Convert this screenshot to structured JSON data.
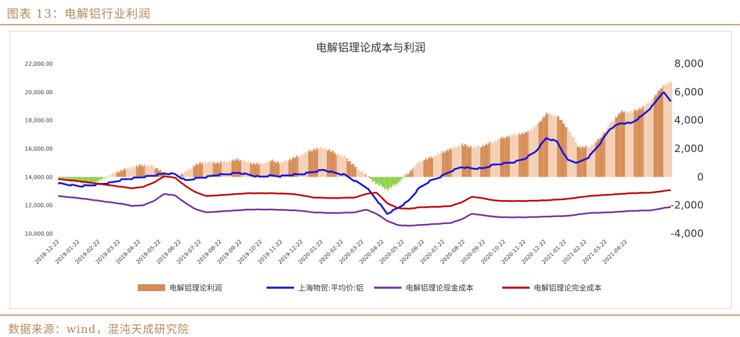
{
  "figure_title": "图表 13：电解铝行业利润",
  "source": "数据来源：wind，混沌天成研究院",
  "colors": {
    "profit_pos_dark": "#d68b54",
    "profit_pos_light": "#f3cfb3",
    "profit_neg": "#8fd14f",
    "price": "#1313e0",
    "cash_cost": "#7030a0",
    "full_cost": "#c00000",
    "accent": "#c9a27a"
  },
  "chart_data": {
    "type": "line",
    "title": "电解铝理论成本与利润",
    "x_ticks": [
      "2018-12-22",
      "2019-01-22",
      "2019-02-22",
      "2019-03-22",
      "2019-04-22",
      "2019-05-22",
      "2019-06-22",
      "2019-07-22",
      "2019-08-22",
      "2019-09-22",
      "2019-10-22",
      "2019-11-22",
      "2019-12-22",
      "2020-01-22",
      "2020-02-22",
      "2020-03-22",
      "2020-04-22",
      "2020-05-22",
      "2020-06-22",
      "2020-07-22",
      "2020-08-22",
      "2020-09-22",
      "2020-10-22",
      "2020-11-22",
      "2020-12-22",
      "2021-01-22",
      "2021-02-22",
      "2021-03-22",
      "2021-04-22"
    ],
    "y_left": {
      "ylim": [
        10000,
        22000
      ],
      "ticks": [
        "10,000.00",
        "12,000.00",
        "14,000.00",
        "16,000.00",
        "18,000.00",
        "20,000.00",
        "22,000.00"
      ]
    },
    "y_right": {
      "ylim": [
        -4000,
        8000
      ],
      "ticks": [
        "-4,000",
        "-2,000",
        "0",
        "2,000",
        "4,000",
        "6,000",
        "8,000"
      ]
    },
    "x_range": [
      0,
      28.9
    ],
    "series": [
      {
        "name": "电解铝理论利润",
        "axis": "right",
        "kind": "bar",
        "points": [
          [
            0,
            -100
          ],
          [
            0.5,
            -250
          ],
          [
            1,
            -400
          ],
          [
            1.5,
            -500
          ],
          [
            2,
            -200
          ],
          [
            2.5,
            200
          ],
          [
            3,
            500
          ],
          [
            3.5,
            700
          ],
          [
            4,
            850
          ],
          [
            4.5,
            750
          ],
          [
            5,
            200
          ],
          [
            5.5,
            -100
          ],
          [
            6,
            400
          ],
          [
            6.5,
            900
          ],
          [
            7,
            1050
          ],
          [
            7.5,
            1000
          ],
          [
            8,
            1100
          ],
          [
            8.5,
            1250
          ],
          [
            9,
            1000
          ],
          [
            9.5,
            900
          ],
          [
            10,
            1150
          ],
          [
            10.5,
            1000
          ],
          [
            11,
            1300
          ],
          [
            11.5,
            1600
          ],
          [
            12,
            1950
          ],
          [
            12.5,
            2050
          ],
          [
            13,
            1700
          ],
          [
            13.5,
            1400
          ],
          [
            14,
            700
          ],
          [
            14.5,
            100
          ],
          [
            15,
            -500
          ],
          [
            15.5,
            -900
          ],
          [
            16,
            -400
          ],
          [
            16.5,
            300
          ],
          [
            17,
            1100
          ],
          [
            17.5,
            1350
          ],
          [
            18,
            1700
          ],
          [
            18.5,
            2000
          ],
          [
            19,
            2300
          ],
          [
            19.5,
            2100
          ],
          [
            20,
            2200
          ],
          [
            20.5,
            2500
          ],
          [
            21,
            2800
          ],
          [
            21.5,
            3000
          ],
          [
            22,
            3100
          ],
          [
            22.5,
            3600
          ],
          [
            23,
            4500
          ],
          [
            23.5,
            4300
          ],
          [
            24,
            3400
          ],
          [
            24.5,
            2100
          ],
          [
            25,
            2100
          ],
          [
            25.5,
            2700
          ],
          [
            26,
            3800
          ],
          [
            26.5,
            4600
          ],
          [
            27,
            4600
          ],
          [
            27.5,
            4900
          ],
          [
            28,
            5500
          ],
          [
            28.5,
            6500
          ],
          [
            28.9,
            6700
          ]
        ]
      },
      {
        "name": "上海物贸:平均价:铝",
        "axis": "left",
        "kind": "line",
        "points": [
          [
            0,
            13550
          ],
          [
            0.5,
            13450
          ],
          [
            1,
            13350
          ],
          [
            1.5,
            13400
          ],
          [
            2,
            13500
          ],
          [
            2.5,
            13600
          ],
          [
            3,
            13800
          ],
          [
            3.5,
            13900
          ],
          [
            4,
            14000
          ],
          [
            4.5,
            14100
          ],
          [
            5,
            14250
          ],
          [
            5.5,
            14200
          ],
          [
            6,
            13750
          ],
          [
            6.5,
            13900
          ],
          [
            7,
            14000
          ],
          [
            7.5,
            14150
          ],
          [
            8,
            14200
          ],
          [
            8.5,
            14300
          ],
          [
            9,
            14150
          ],
          [
            9.5,
            14000
          ],
          [
            10,
            14100
          ],
          [
            10.5,
            14050
          ],
          [
            11,
            14150
          ],
          [
            11.5,
            14200
          ],
          [
            12,
            14350
          ],
          [
            12.5,
            14500
          ],
          [
            13,
            14300
          ],
          [
            13.5,
            14150
          ],
          [
            14,
            13700
          ],
          [
            14.5,
            13300
          ],
          [
            15,
            12400
          ],
          [
            15.5,
            11400
          ],
          [
            16,
            11800
          ],
          [
            16.5,
            12300
          ],
          [
            17,
            13200
          ],
          [
            17.5,
            13700
          ],
          [
            18,
            14000
          ],
          [
            18.5,
            14400
          ],
          [
            19,
            14700
          ],
          [
            19.5,
            14600
          ],
          [
            20,
            14600
          ],
          [
            20.5,
            14850
          ],
          [
            21,
            14950
          ],
          [
            21.5,
            15050
          ],
          [
            22,
            15300
          ],
          [
            22.5,
            15800
          ],
          [
            23,
            16750
          ],
          [
            23.5,
            16500
          ],
          [
            24,
            15200
          ],
          [
            24.5,
            15000
          ],
          [
            25,
            15400
          ],
          [
            25.5,
            16300
          ],
          [
            26,
            17400
          ],
          [
            26.5,
            17800
          ],
          [
            27,
            17800
          ],
          [
            27.5,
            18300
          ],
          [
            28,
            19000
          ],
          [
            28.5,
            20000
          ],
          [
            28.9,
            19300
          ],
          [
            29,
            18500
          ]
        ]
      },
      {
        "name": "电解铝理论现金成本",
        "axis": "left",
        "kind": "line",
        "points": [
          [
            0,
            12650
          ],
          [
            1,
            12500
          ],
          [
            2,
            12300
          ],
          [
            3,
            12100
          ],
          [
            3.5,
            11950
          ],
          [
            4,
            12000
          ],
          [
            4.5,
            12300
          ],
          [
            5,
            12800
          ],
          [
            5.5,
            12700
          ],
          [
            6,
            12150
          ],
          [
            6.5,
            11700
          ],
          [
            7,
            11500
          ],
          [
            7.5,
            11550
          ],
          [
            8,
            11600
          ],
          [
            8.5,
            11650
          ],
          [
            9,
            11700
          ],
          [
            10,
            11700
          ],
          [
            11,
            11650
          ],
          [
            11.5,
            11600
          ],
          [
            12,
            11500
          ],
          [
            13,
            11450
          ],
          [
            14,
            11500
          ],
          [
            14.5,
            11700
          ],
          [
            15,
            11400
          ],
          [
            15.5,
            10900
          ],
          [
            16,
            10600
          ],
          [
            16.5,
            10550
          ],
          [
            17,
            10600
          ],
          [
            18,
            10700
          ],
          [
            18.5,
            10750
          ],
          [
            19,
            11000
          ],
          [
            19.5,
            11400
          ],
          [
            20,
            11300
          ],
          [
            20.5,
            11200
          ],
          [
            21,
            11150
          ],
          [
            22,
            11150
          ],
          [
            23,
            11200
          ],
          [
            24,
            11250
          ],
          [
            25,
            11450
          ],
          [
            26,
            11500
          ],
          [
            27,
            11600
          ],
          [
            28,
            11650
          ],
          [
            28.5,
            11800
          ],
          [
            29,
            11900
          ]
        ]
      },
      {
        "name": "电解铝理论完全成本",
        "axis": "left",
        "kind": "line",
        "points": [
          [
            0,
            13850
          ],
          [
            1,
            13700
          ],
          [
            2,
            13500
          ],
          [
            3,
            13300
          ],
          [
            3.5,
            13200
          ],
          [
            4,
            13300
          ],
          [
            4.5,
            13600
          ],
          [
            5,
            14050
          ],
          [
            5.5,
            13950
          ],
          [
            6,
            13350
          ],
          [
            6.5,
            12900
          ],
          [
            7,
            12650
          ],
          [
            7.5,
            12700
          ],
          [
            8,
            12750
          ],
          [
            8.5,
            12800
          ],
          [
            9,
            12850
          ],
          [
            10,
            12850
          ],
          [
            11,
            12800
          ],
          [
            11.5,
            12700
          ],
          [
            12,
            12550
          ],
          [
            13,
            12500
          ],
          [
            14,
            12550
          ],
          [
            14.5,
            12800
          ],
          [
            15,
            12900
          ],
          [
            15.5,
            12150
          ],
          [
            16,
            11800
          ],
          [
            16.5,
            11750
          ],
          [
            17,
            11850
          ],
          [
            18,
            11900
          ],
          [
            18.5,
            11950
          ],
          [
            19,
            12200
          ],
          [
            19.5,
            12600
          ],
          [
            20,
            12500
          ],
          [
            20.5,
            12350
          ],
          [
            21,
            12300
          ],
          [
            22,
            12300
          ],
          [
            23,
            12350
          ],
          [
            24,
            12450
          ],
          [
            25,
            12650
          ],
          [
            26,
            12750
          ],
          [
            27,
            12850
          ],
          [
            28,
            12900
          ],
          [
            28.5,
            13000
          ],
          [
            29,
            13100
          ]
        ]
      }
    ],
    "legend_position": "bottom"
  }
}
